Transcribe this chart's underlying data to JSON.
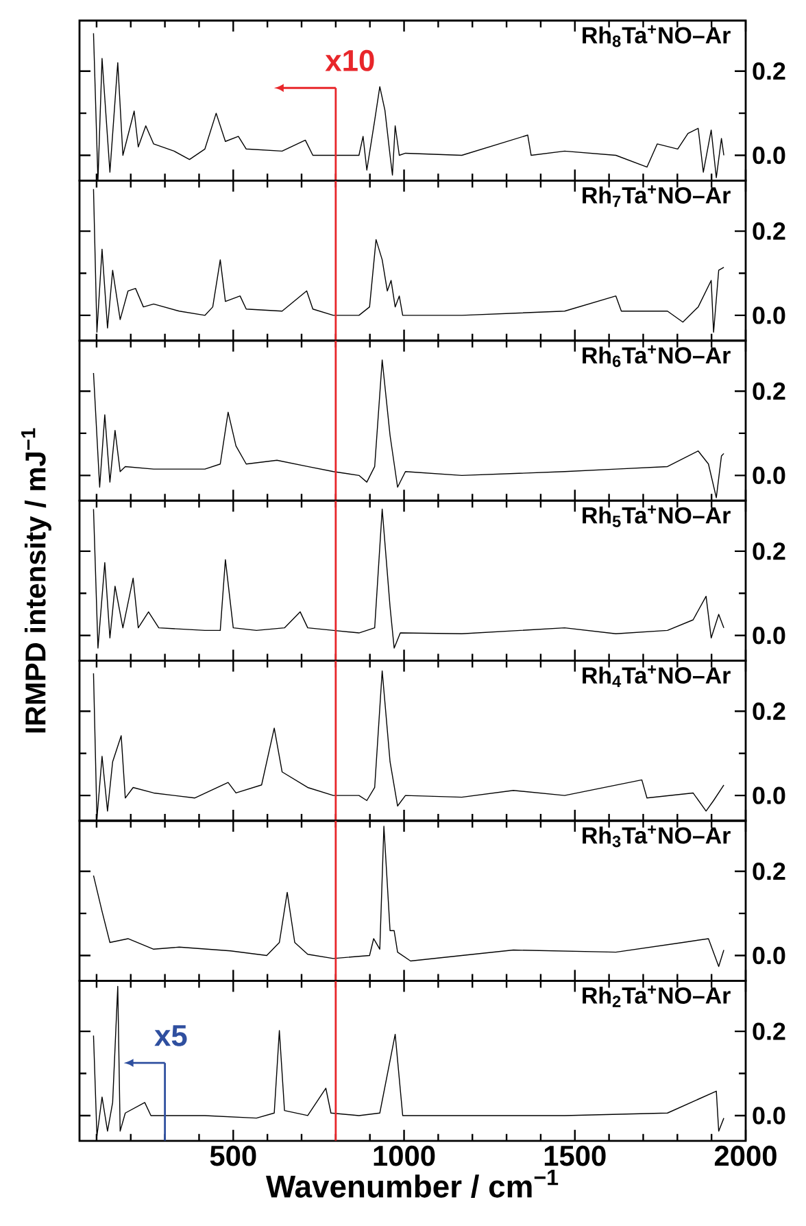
{
  "chart_data": [
    {
      "type": "line",
      "title": "Rh$_{8}$Ta$^{+}$NO–Ar",
      "xlim": [
        50,
        2000
      ],
      "ylim": [
        -0.06,
        0.32
      ],
      "tick_labels": "y",
      "xticks": [
        {
          "value": 100,
          "label": null
        },
        {
          "value": 200,
          "label": null
        },
        {
          "value": 300,
          "label": null
        },
        {
          "value": 400,
          "label": null
        },
        500,
        {
          "value": 600,
          "label": null
        },
        {
          "value": 700,
          "label": null
        },
        {
          "value": 800,
          "label": null
        },
        {
          "value": 900,
          "label": null
        },
        1000,
        {
          "value": 1100,
          "label": null
        },
        {
          "value": 1200,
          "label": null
        },
        {
          "value": 1300,
          "label": null
        },
        {
          "value": 1400,
          "label": null
        },
        1500,
        {
          "value": 1600,
          "label": null
        },
        {
          "value": 1700,
          "label": null
        },
        {
          "value": 1800,
          "label": null
        },
        {
          "value": 1900,
          "label": null
        },
        2000
      ],
      "yticks": [
        {
          "value": 0,
          "label": "0.0"
        },
        {
          "value": 0.1,
          "label": null
        },
        {
          "value": 0.2,
          "label": "0.2"
        }
      ],
      "ref_lines": [
        {
          "axis": "x",
          "value": 800,
          "color": "#e8262a"
        }
      ],
      "annotations": [
        {
          "text": "x10",
          "x": 800,
          "y": 0.16
        }
      ],
      "x": [
        91,
        104,
        116,
        139,
        162,
        177,
        210,
        222,
        244,
        267,
        327,
        372,
        417,
        450,
        477,
        515,
        538,
        643,
        711,
        733,
        793,
        868,
        880,
        891,
        914,
        929,
        944,
        959,
        966,
        974,
        986,
        1004,
        1169,
        1362,
        1372,
        1470,
        1620,
        1711,
        1741,
        1801,
        1831,
        1861,
        1876,
        1899,
        1914,
        1929,
        1936
      ],
      "series": [
        {
          "color": "#000000",
          "values": [
            0.29,
            -0.06,
            0.23,
            -0.04,
            0.22,
            0.0,
            0.105,
            0.02,
            0.07,
            0.027,
            0.01,
            -0.01,
            0.015,
            0.1,
            0.033,
            0.045,
            0.015,
            0.01,
            0.036,
            0.0,
            0.0,
            0.0,
            0.045,
            -0.035,
            0.083,
            0.163,
            0.107,
            0.0,
            -0.047,
            0.07,
            0.0,
            0.005,
            0.0,
            0.048,
            0.0,
            0.01,
            0.0,
            -0.028,
            0.027,
            0.015,
            0.052,
            0.064,
            -0.04,
            0.06,
            -0.053,
            0.04,
            0.0
          ]
        }
      ]
    },
    {
      "type": "line",
      "title": "Rh$_{7}$Ta$^{+}$NO–Ar",
      "xlim": [
        50,
        2000
      ],
      "ylim": [
        -0.06,
        0.32
      ],
      "tick_labels": "y",
      "xticks": [
        {
          "value": 100,
          "label": null
        },
        {
          "value": 200,
          "label": null
        },
        {
          "value": 300,
          "label": null
        },
        {
          "value": 400,
          "label": null
        },
        500,
        {
          "value": 600,
          "label": null
        },
        {
          "value": 700,
          "label": null
        },
        {
          "value": 800,
          "label": null
        },
        {
          "value": 900,
          "label": null
        },
        1000,
        {
          "value": 1100,
          "label": null
        },
        {
          "value": 1200,
          "label": null
        },
        {
          "value": 1300,
          "label": null
        },
        {
          "value": 1400,
          "label": null
        },
        1500,
        {
          "value": 1600,
          "label": null
        },
        {
          "value": 1700,
          "label": null
        },
        {
          "value": 1800,
          "label": null
        },
        {
          "value": 1900,
          "label": null
        },
        2000
      ],
      "yticks": [
        {
          "value": 0,
          "label": "0.0"
        },
        {
          "value": 0.1,
          "label": null
        },
        {
          "value": 0.2,
          "label": "0.2"
        }
      ],
      "ref_lines": [
        {
          "axis": "x",
          "value": 800,
          "color": "#e8262a"
        }
      ],
      "x": [
        91,
        101,
        116,
        132,
        147,
        169,
        192,
        214,
        237,
        267,
        342,
        417,
        440,
        462,
        477,
        520,
        538,
        643,
        715,
        733,
        793,
        868,
        899,
        918,
        936,
        951,
        962,
        974,
        986,
        996,
        1169,
        1470,
        1620,
        1636,
        1771,
        1816,
        1861,
        1899,
        1906,
        1921,
        1936
      ],
      "series": [
        {
          "color": "#000000",
          "values": [
            0.3,
            -0.04,
            0.157,
            -0.03,
            0.107,
            -0.01,
            0.058,
            0.064,
            0.02,
            0.027,
            0.01,
            0.0,
            0.02,
            0.132,
            0.033,
            0.046,
            0.015,
            0.01,
            0.058,
            0.015,
            0.0,
            0.0,
            0.02,
            0.18,
            0.132,
            0.058,
            0.083,
            0.02,
            0.046,
            0.0,
            0.0,
            0.01,
            0.046,
            0.01,
            0.01,
            -0.016,
            0.02,
            0.083,
            -0.04,
            0.107,
            0.114
          ]
        }
      ]
    },
    {
      "type": "line",
      "title": "Rh$_{6}$Ta$^{+}$NO–Ar",
      "xlim": [
        50,
        2000
      ],
      "ylim": [
        -0.06,
        0.32
      ],
      "tick_labels": "y",
      "xticks": [
        {
          "value": 100,
          "label": null
        },
        {
          "value": 200,
          "label": null
        },
        {
          "value": 300,
          "label": null
        },
        {
          "value": 400,
          "label": null
        },
        500,
        {
          "value": 600,
          "label": null
        },
        {
          "value": 700,
          "label": null
        },
        {
          "value": 800,
          "label": null
        },
        {
          "value": 900,
          "label": null
        },
        1000,
        {
          "value": 1100,
          "label": null
        },
        {
          "value": 1200,
          "label": null
        },
        {
          "value": 1300,
          "label": null
        },
        {
          "value": 1400,
          "label": null
        },
        1500,
        {
          "value": 1600,
          "label": null
        },
        {
          "value": 1700,
          "label": null
        },
        {
          "value": 1800,
          "label": null
        },
        {
          "value": 1900,
          "label": null
        },
        2000
      ],
      "yticks": [
        {
          "value": 0,
          "label": "0.0"
        },
        {
          "value": 0.1,
          "label": null
        },
        {
          "value": 0.2,
          "label": "0.2"
        }
      ],
      "ref_lines": [
        {
          "axis": "x",
          "value": 800,
          "color": "#e8262a"
        }
      ],
      "x": [
        91,
        109,
        124,
        139,
        154,
        169,
        184,
        267,
        417,
        462,
        485,
        508,
        538,
        628,
        718,
        793,
        868,
        891,
        914,
        936,
        959,
        981,
        1004,
        1169,
        1470,
        1620,
        1771,
        1861,
        1891,
        1914,
        1929,
        1936
      ],
      "series": [
        {
          "color": "#000000",
          "values": [
            0.243,
            -0.028,
            0.144,
            -0.016,
            0.107,
            0.009,
            0.021,
            0.015,
            0.015,
            0.027,
            0.15,
            0.07,
            0.027,
            0.036,
            0.021,
            0.009,
            0.0,
            -0.016,
            0.021,
            0.274,
            0.095,
            -0.028,
            0.009,
            0.0,
            0.009,
            0.015,
            0.021,
            0.058,
            0.027,
            -0.053,
            0.046,
            0.052
          ]
        }
      ]
    },
    {
      "type": "line",
      "title": "Rh$_{5}$Ta$^{+}$NO–Ar",
      "ylabel": "IRMPD intensity / mJ$^{−1}$",
      "xlim": [
        50,
        2000
      ],
      "ylim": [
        -0.06,
        0.32
      ],
      "tick_labels": "y",
      "xticks": [
        {
          "value": 100,
          "label": null
        },
        {
          "value": 200,
          "label": null
        },
        {
          "value": 300,
          "label": null
        },
        {
          "value": 400,
          "label": null
        },
        500,
        {
          "value": 600,
          "label": null
        },
        {
          "value": 700,
          "label": null
        },
        {
          "value": 800,
          "label": null
        },
        {
          "value": 900,
          "label": null
        },
        1000,
        {
          "value": 1100,
          "label": null
        },
        {
          "value": 1200,
          "label": null
        },
        {
          "value": 1300,
          "label": null
        },
        {
          "value": 1400,
          "label": null
        },
        1500,
        {
          "value": 1600,
          "label": null
        },
        {
          "value": 1700,
          "label": null
        },
        {
          "value": 1800,
          "label": null
        },
        {
          "value": 1900,
          "label": null
        },
        2000
      ],
      "yticks": [
        {
          "value": 0,
          "label": "0.0"
        },
        {
          "value": 0.1,
          "label": null
        },
        {
          "value": 0.2,
          "label": "0.2"
        }
      ],
      "ref_lines": [
        {
          "axis": "x",
          "value": 800,
          "color": "#e8262a"
        }
      ],
      "x": [
        91,
        104,
        124,
        139,
        154,
        177,
        207,
        222,
        252,
        282,
        417,
        462,
        477,
        500,
        568,
        650,
        696,
        718,
        793,
        868,
        914,
        936,
        959,
        971,
        989,
        1169,
        1470,
        1620,
        1771,
        1846,
        1884,
        1899,
        1921,
        1936
      ],
      "series": [
        {
          "color": "#000000",
          "values": [
            0.3,
            -0.03,
            0.173,
            -0.006,
            0.117,
            0.018,
            0.136,
            0.018,
            0.056,
            0.018,
            0.012,
            0.012,
            0.18,
            0.018,
            0.012,
            0.018,
            0.056,
            0.018,
            0.012,
            0.006,
            0.018,
            0.3,
            0.068,
            -0.03,
            0.006,
            0.004,
            0.018,
            0.004,
            0.012,
            0.037,
            0.093,
            -0.006,
            0.05,
            0.018
          ]
        }
      ]
    },
    {
      "type": "line",
      "title": "Rh$_{4}$Ta$^{+}$NO–Ar",
      "xlim": [
        50,
        2000
      ],
      "ylim": [
        -0.06,
        0.32
      ],
      "tick_labels": "y",
      "xticks": [
        {
          "value": 100,
          "label": null
        },
        {
          "value": 200,
          "label": null
        },
        {
          "value": 300,
          "label": null
        },
        {
          "value": 400,
          "label": null
        },
        500,
        {
          "value": 600,
          "label": null
        },
        {
          "value": 700,
          "label": null
        },
        {
          "value": 800,
          "label": null
        },
        {
          "value": 900,
          "label": null
        },
        1000,
        {
          "value": 1100,
          "label": null
        },
        {
          "value": 1200,
          "label": null
        },
        {
          "value": 1300,
          "label": null
        },
        {
          "value": 1400,
          "label": null
        },
        1500,
        {
          "value": 1600,
          "label": null
        },
        {
          "value": 1700,
          "label": null
        },
        {
          "value": 1800,
          "label": null
        },
        {
          "value": 1900,
          "label": null
        },
        2000
      ],
      "yticks": [
        {
          "value": 0,
          "label": "0.0"
        },
        {
          "value": 0.1,
          "label": null
        },
        {
          "value": 0.2,
          "label": "0.2"
        }
      ],
      "ref_lines": [
        {
          "axis": "x",
          "value": 800,
          "color": "#e8262a"
        }
      ],
      "x": [
        91,
        101,
        116,
        132,
        147,
        172,
        184,
        207,
        267,
        387,
        485,
        508,
        583,
        620,
        643,
        718,
        793,
        868,
        891,
        914,
        936,
        959,
        981,
        1004,
        1169,
        1320,
        1470,
        1696,
        1711,
        1846,
        1884,
        1906,
        1936
      ],
      "series": [
        {
          "color": "#000000",
          "values": [
            0.29,
            -0.056,
            0.093,
            -0.037,
            0.08,
            0.142,
            -0.006,
            0.019,
            0.006,
            -0.006,
            0.031,
            0.006,
            0.025,
            0.16,
            0.056,
            0.019,
            0.0,
            0.0,
            -0.012,
            0.019,
            0.296,
            0.08,
            -0.025,
            0.0,
            -0.004,
            0.012,
            0.0,
            0.037,
            -0.006,
            0.006,
            -0.037,
            -0.012,
            0.025
          ]
        }
      ]
    },
    {
      "type": "line",
      "title": "Rh$_{3}$Ta$^{+}$NO–Ar",
      "xlim": [
        50,
        2000
      ],
      "ylim": [
        -0.06,
        0.32
      ],
      "tick_labels": "y",
      "xticks": [
        {
          "value": 100,
          "label": null
        },
        {
          "value": 200,
          "label": null
        },
        {
          "value": 300,
          "label": null
        },
        {
          "value": 400,
          "label": null
        },
        500,
        {
          "value": 600,
          "label": null
        },
        {
          "value": 700,
          "label": null
        },
        {
          "value": 800,
          "label": null
        },
        {
          "value": 900,
          "label": null
        },
        1000,
        {
          "value": 1100,
          "label": null
        },
        {
          "value": 1200,
          "label": null
        },
        {
          "value": 1300,
          "label": null
        },
        {
          "value": 1400,
          "label": null
        },
        1500,
        {
          "value": 1600,
          "label": null
        },
        {
          "value": 1700,
          "label": null
        },
        {
          "value": 1800,
          "label": null
        },
        {
          "value": 1900,
          "label": null
        },
        2000
      ],
      "yticks": [
        {
          "value": 0,
          "label": "0.0"
        },
        {
          "value": 0.1,
          "label": null
        },
        {
          "value": 0.2,
          "label": "0.2"
        }
      ],
      "ref_lines": [
        {
          "axis": "x",
          "value": 800,
          "color": "#e8262a"
        }
      ],
      "x": [
        91,
        116,
        139,
        192,
        267,
        342,
        492,
        598,
        635,
        658,
        680,
        718,
        793,
        899,
        911,
        929,
        941,
        959,
        971,
        981,
        1019,
        1169,
        1320,
        1620,
        1816,
        1891,
        1921,
        1936
      ],
      "series": [
        {
          "color": "#000000",
          "values": [
            0.19,
            0.105,
            0.031,
            0.04,
            0.015,
            0.02,
            0.011,
            0.0,
            0.031,
            0.15,
            0.031,
            0.003,
            -0.007,
            0.0,
            0.04,
            0.015,
            0.307,
            0.059,
            0.059,
            0.008,
            -0.013,
            0.0,
            0.013,
            0.008,
            0.031,
            0.04,
            -0.026,
            0.013
          ]
        }
      ]
    },
    {
      "type": "line",
      "title": "Rh$_{2}$Ta$^{+}$NO–Ar",
      "xlabel": "Wavenumber / cm$^{−1}$",
      "xlim": [
        50,
        2000
      ],
      "ylim": [
        -0.06,
        0.32
      ],
      "xticks": [
        {
          "value": 100,
          "label": null
        },
        {
          "value": 200,
          "label": null
        },
        {
          "value": 300,
          "label": null
        },
        {
          "value": 400,
          "label": null
        },
        500,
        {
          "value": 600,
          "label": null
        },
        {
          "value": 700,
          "label": null
        },
        {
          "value": 800,
          "label": null
        },
        {
          "value": 900,
          "label": null
        },
        1000,
        {
          "value": 1100,
          "label": null
        },
        {
          "value": 1200,
          "label": null
        },
        {
          "value": 1300,
          "label": null
        },
        {
          "value": 1400,
          "label": null
        },
        1500,
        {
          "value": 1600,
          "label": null
        },
        {
          "value": 1700,
          "label": null
        },
        {
          "value": 1800,
          "label": null
        },
        {
          "value": 1900,
          "label": null
        },
        2000
      ],
      "yticks": [
        {
          "value": 0,
          "label": "0.0"
        },
        {
          "value": 0.1,
          "label": null
        },
        {
          "value": 0.2,
          "label": "0.2"
        }
      ],
      "ref_lines": [
        {
          "axis": "x",
          "value": 800,
          "color": "#e8262a"
        },
        {
          "axis": "x",
          "value": 300,
          "color": "#2f4f9f"
        }
      ],
      "annotations": [
        {
          "text": "x5",
          "x": 300,
          "y": 0.125
        }
      ],
      "x": [
        91,
        101,
        116,
        132,
        147,
        162,
        169,
        184,
        241,
        259,
        417,
        568,
        620,
        635,
        650,
        718,
        771,
        786,
        868,
        929,
        974,
        996,
        1169,
        1470,
        1771,
        1914,
        1921,
        1936
      ],
      "series": [
        {
          "color": "#000000",
          "values": [
            0.19,
            -0.049,
            0.044,
            -0.037,
            0.031,
            0.307,
            -0.037,
            0.006,
            0.031,
            0.0,
            0.0,
            -0.006,
            0.006,
            0.202,
            0.012,
            0.0,
            0.065,
            0.006,
            0.0,
            0.006,
            0.193,
            0.0,
            0.0,
            0.0,
            0.006,
            0.058,
            -0.037,
            -0.006
          ]
        }
      ]
    }
  ]
}
